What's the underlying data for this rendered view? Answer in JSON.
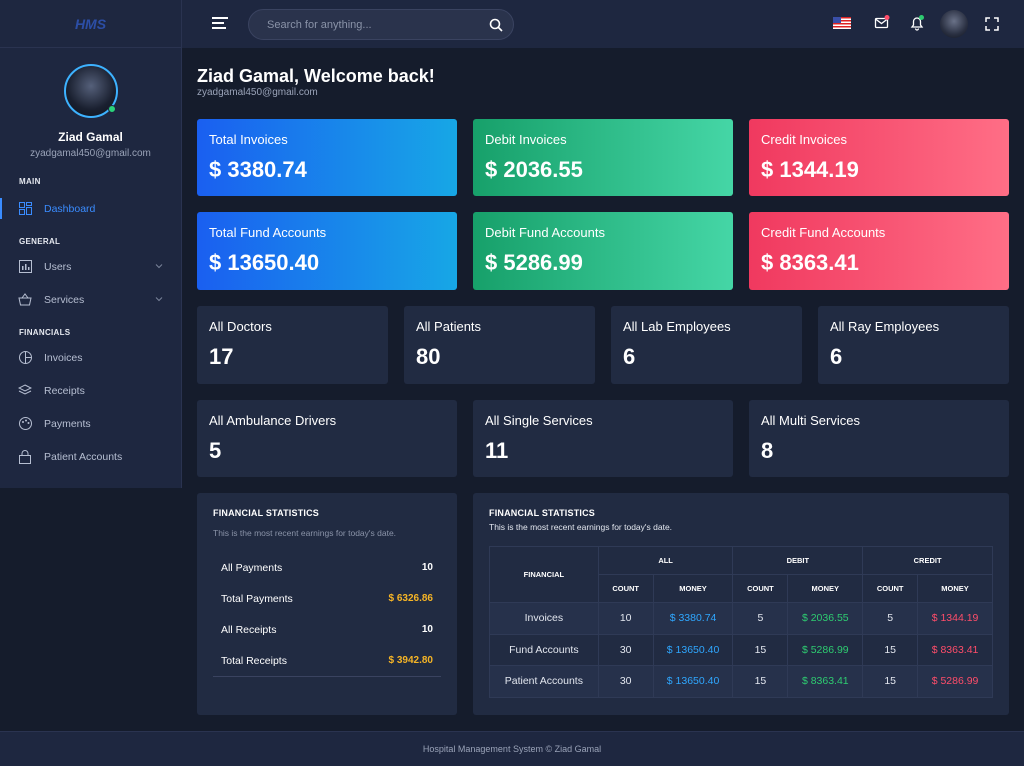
{
  "logo": "HMS",
  "profile": {
    "name": "Ziad Gamal",
    "email": "zyadgamal450@gmail.com"
  },
  "sidebar": {
    "main_title": "MAIN",
    "dashboard": "Dashboard",
    "general_title": "GENERAL",
    "users": "Users",
    "services": "Services",
    "financials_title": "FINANCIALS",
    "invoices": "Invoices",
    "receipts": "Receipts",
    "payments": "Payments",
    "patient_accounts": "Patient Accounts"
  },
  "search": {
    "placeholder": "Search for anything..."
  },
  "welcome": {
    "title": "Ziad Gamal, Welcome back!",
    "email": "zyadgamal450@gmail.com"
  },
  "cards": {
    "total_invoices": {
      "label": "Total Invoices",
      "value": "$ 3380.74"
    },
    "debit_invoices": {
      "label": "Debit Invoices",
      "value": "$ 2036.55"
    },
    "credit_invoices": {
      "label": "Credit Invoices",
      "value": "$ 1344.19"
    },
    "total_fund": {
      "label": "Total Fund Accounts",
      "value": "$ 13650.40"
    },
    "debit_fund": {
      "label": "Debit Fund Accounts",
      "value": "$ 5286.99"
    },
    "credit_fund": {
      "label": "Credit Fund Accounts",
      "value": "$ 8363.41"
    }
  },
  "counts": {
    "doctors": {
      "label": "All Doctors",
      "value": "17"
    },
    "patients": {
      "label": "All Patients",
      "value": "80"
    },
    "lab": {
      "label": "All Lab Employees",
      "value": "6"
    },
    "ray": {
      "label": "All Ray Employees",
      "value": "6"
    },
    "ambulance": {
      "label": "All Ambulance Drivers",
      "value": "5"
    },
    "single": {
      "label": "All Single Services",
      "value": "11"
    },
    "multi": {
      "label": "All Multi Services",
      "value": "8"
    }
  },
  "fin_stats_left": {
    "title": "FINANCIAL STATISTICS",
    "subtitle": "This is the most recent earnings for today's date.",
    "rows": [
      {
        "label": "All Payments",
        "value": "10"
      },
      {
        "label": "Total Payments",
        "value": "$ 6326.86"
      },
      {
        "label": "All Receipts",
        "value": "10"
      },
      {
        "label": "Total Receipts",
        "value": "$ 3942.80"
      }
    ]
  },
  "fin_stats_right": {
    "title": "FINANCIAL STATISTICS",
    "subtitle": "This is the most recent earnings for today's date.",
    "headers": {
      "financial": "FINANCIAL",
      "all": "ALL",
      "debit": "DEBIT",
      "credit": "CREDIT",
      "count": "COUNT",
      "money": "MONEY"
    },
    "rows": [
      {
        "name": "Invoices",
        "all_count": "10",
        "all_money": "$ 3380.74",
        "debit_count": "5",
        "debit_money": "$ 2036.55",
        "credit_count": "5",
        "credit_money": "$ 1344.19"
      },
      {
        "name": "Fund Accounts",
        "all_count": "30",
        "all_money": "$ 13650.40",
        "debit_count": "15",
        "debit_money": "$ 5286.99",
        "credit_count": "15",
        "credit_money": "$ 8363.41"
      },
      {
        "name": "Patient Accounts",
        "all_count": "30",
        "all_money": "$ 13650.40",
        "debit_count": "15",
        "debit_money": "$ 8363.41",
        "credit_count": "15",
        "credit_money": "$ 5286.99"
      }
    ]
  },
  "footer": "Hospital Management System © Ziad Gamal",
  "colors": {
    "accent": "#3a8cff",
    "gold": "#f6b526",
    "green": "#2ecc71",
    "red": "#ff4d6a"
  }
}
